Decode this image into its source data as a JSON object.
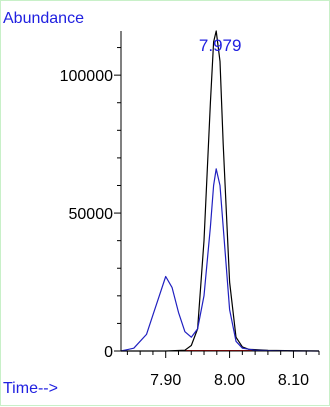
{
  "chart_data": {
    "type": "line",
    "ylabel": "Abundance",
    "xlabel": "Time-->",
    "xlim": [
      7.83,
      8.14
    ],
    "ylim": [
      0,
      116000
    ],
    "xticks": [
      7.9,
      8.0,
      8.1
    ],
    "xtick_labels": [
      "7.90",
      "8.00",
      "8.10"
    ],
    "yticks": [
      0,
      50000,
      100000
    ],
    "ytick_labels": [
      "0",
      "50000",
      "100000"
    ],
    "peak_label": {
      "text": "7.979",
      "x": 7.979,
      "y": 114000
    },
    "baseline": {
      "y": 0,
      "x_range": [
        7.93,
        8.06
      ]
    },
    "colors": {
      "axes_label": "#2020e0",
      "peak_label": "#2020e0",
      "series1": "#000000",
      "series2": "#2020c0",
      "baseline": "#d01010",
      "frame": "#c8f0c8"
    },
    "series": [
      {
        "x": [
          7.83,
          7.9,
          7.93,
          7.94,
          7.95,
          7.96,
          7.97,
          7.975,
          7.979,
          7.985,
          7.99,
          8.0,
          8.01,
          8.02,
          8.03,
          8.06,
          8.1,
          8.14
        ],
        "values": [
          0,
          0,
          300,
          2000,
          8000,
          40000,
          90000,
          112000,
          116000,
          105000,
          75000,
          25000,
          5000,
          1500,
          600,
          200,
          100,
          0
        ]
      },
      {
        "x": [
          7.83,
          7.85,
          7.87,
          7.88,
          7.89,
          7.9,
          7.91,
          7.92,
          7.93,
          7.94,
          7.95,
          7.96,
          7.97,
          7.975,
          7.979,
          7.985,
          7.99,
          8.0,
          8.01,
          8.02,
          8.04,
          8.07,
          8.1,
          8.14
        ],
        "values": [
          0,
          1000,
          6000,
          13000,
          20000,
          27000,
          23000,
          14000,
          7000,
          5000,
          8000,
          20000,
          45000,
          60000,
          66000,
          60000,
          45000,
          15000,
          3500,
          1000,
          300,
          100,
          0,
          0
        ]
      }
    ]
  }
}
